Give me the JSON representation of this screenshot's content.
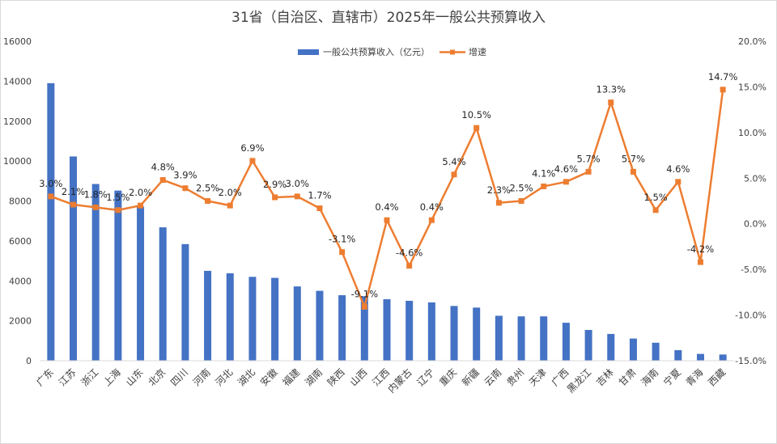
{
  "chart_data": {
    "type": "bar+line",
    "title": "31省（自治区、直辖市）2025年一般公共预算收入",
    "categories": [
      "广东",
      "江苏",
      "浙江",
      "上海",
      "山东",
      "北京",
      "四川",
      "河南",
      "河北",
      "湖北",
      "安徽",
      "福建",
      "湖南",
      "陕西",
      "山西",
      "江西",
      "内蒙古",
      "辽宁",
      "重庆",
      "新疆",
      "云南",
      "贵州",
      "天津",
      "广西",
      "黑龙江",
      "吉林",
      "甘肃",
      "海南",
      "宁夏",
      "青海",
      "西藏"
    ],
    "series": [
      {
        "name": "一般公共预算收入（亿元）",
        "type": "bar",
        "axis": "left",
        "color": "#4472C4",
        "values": [
          13900,
          10230,
          8850,
          8520,
          7720,
          6680,
          5840,
          4500,
          4380,
          4200,
          4150,
          3720,
          3500,
          3280,
          3230,
          3080,
          3000,
          2920,
          2740,
          2660,
          2250,
          2220,
          2220,
          1900,
          1540,
          1340,
          1110,
          900,
          530,
          340,
          310
        ]
      },
      {
        "name": "增速",
        "type": "line",
        "axis": "right",
        "color": "#ED7D31",
        "values": [
          3.0,
          2.1,
          1.8,
          1.5,
          2.0,
          4.8,
          3.9,
          2.5,
          2.0,
          6.9,
          2.9,
          3.0,
          1.7,
          -3.1,
          -9.1,
          0.4,
          -4.6,
          0.4,
          5.4,
          10.5,
          2.3,
          2.5,
          4.1,
          4.6,
          5.7,
          13.3,
          5.7,
          1.5,
          4.6,
          -4.2,
          14.7
        ],
        "labels": [
          "3.0%",
          "2.1%",
          "1.8%",
          "1.5%",
          "2.0%",
          "4.8%",
          "3.9%",
          "2.5%",
          "2.0%",
          "6.9%",
          "2.9%",
          "3.0%",
          "1.7%",
          "-3.1%",
          "-9.1%",
          "0.4%",
          "-4.6%",
          "0.4%",
          "5.4%",
          "10.5%",
          "2.3%",
          "2.5%",
          "4.1%",
          "4.6%",
          "5.7%",
          "13.3%",
          "5.7%",
          "1.5%",
          "4.6%",
          "-4.2%",
          "14.7%"
        ]
      }
    ],
    "y_left": {
      "min": 0,
      "max": 16000,
      "ticks": [
        "0",
        "2000",
        "4000",
        "6000",
        "8000",
        "10000",
        "12000",
        "14000",
        "16000"
      ]
    },
    "y_right": {
      "min": -15,
      "max": 20,
      "ticks": [
        "-15.0%",
        "-10.0%",
        "-5.0%",
        "0.0%",
        "5.0%",
        "10.0%",
        "15.0%",
        "20.0%"
      ]
    },
    "legend": {
      "position": "top-center"
    },
    "grid": false
  }
}
